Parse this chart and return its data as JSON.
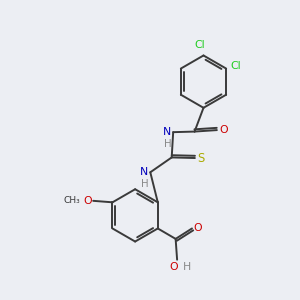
{
  "background_color": "#eceef3",
  "bond_color": "#3a3a3a",
  "cl_color": "#22cc22",
  "o_color": "#cc0000",
  "n_color": "#0000bb",
  "s_color": "#aaaa00",
  "h_color": "#888888",
  "c_color": "#3a3a3a",
  "lw": 1.4,
  "fs": 7.8,
  "xlim": [
    0,
    10
  ],
  "ylim": [
    0,
    10
  ]
}
